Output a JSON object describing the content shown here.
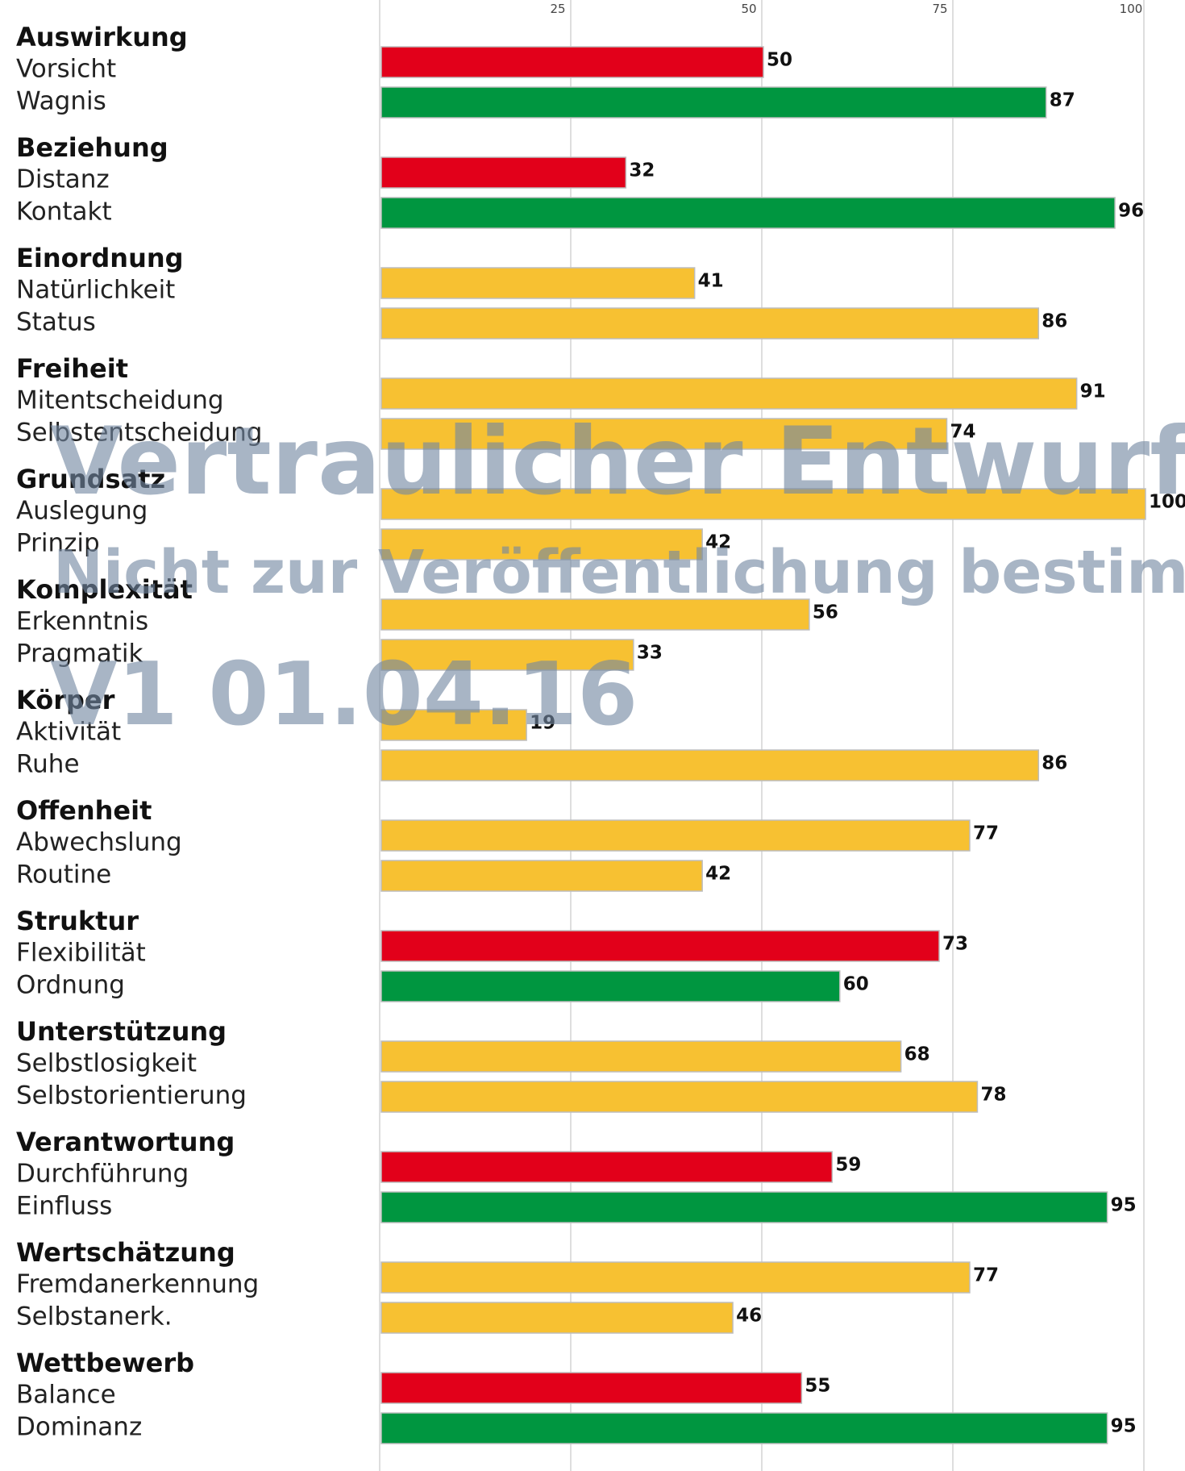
{
  "chart_data": {
    "type": "bar",
    "orientation": "horizontal",
    "xlim": [
      0,
      100
    ],
    "ticks": [
      25,
      50,
      75,
      100
    ],
    "grid": true,
    "colors": {
      "red": "#e2001a",
      "green": "#009640",
      "yellow": "#f7c132"
    },
    "groups": [
      {
        "name": "Auswirkung",
        "items": [
          {
            "label": "Vorsicht",
            "value": 50,
            "color": "red"
          },
          {
            "label": "Wagnis",
            "value": 87,
            "color": "green"
          }
        ]
      },
      {
        "name": "Beziehung",
        "items": [
          {
            "label": "Distanz",
            "value": 32,
            "color": "red"
          },
          {
            "label": "Kontakt",
            "value": 96,
            "color": "green"
          }
        ]
      },
      {
        "name": "Einordnung",
        "items": [
          {
            "label": "Natürlichkeit",
            "value": 41,
            "color": "yellow"
          },
          {
            "label": "Status",
            "value": 86,
            "color": "yellow"
          }
        ]
      },
      {
        "name": "Freiheit",
        "items": [
          {
            "label": "Mitentscheidung",
            "value": 91,
            "color": "yellow"
          },
          {
            "label": "Selbstentscheidung",
            "value": 74,
            "color": "yellow"
          }
        ]
      },
      {
        "name": "Grundsatz",
        "items": [
          {
            "label": "Auslegung",
            "value": 100,
            "color": "yellow"
          },
          {
            "label": "Prinzip",
            "value": 42,
            "color": "yellow"
          }
        ]
      },
      {
        "name": "Komplexität",
        "items": [
          {
            "label": "Erkenntnis",
            "value": 56,
            "color": "yellow"
          },
          {
            "label": "Pragmatik",
            "value": 33,
            "color": "yellow"
          }
        ]
      },
      {
        "name": "Körper",
        "items": [
          {
            "label": "Aktivität",
            "value": 19,
            "color": "yellow"
          },
          {
            "label": "Ruhe",
            "value": 86,
            "color": "yellow"
          }
        ]
      },
      {
        "name": "Offenheit",
        "items": [
          {
            "label": "Abwechslung",
            "value": 77,
            "color": "yellow"
          },
          {
            "label": "Routine",
            "value": 42,
            "color": "yellow"
          }
        ]
      },
      {
        "name": "Struktur",
        "items": [
          {
            "label": "Flexibilität",
            "value": 73,
            "color": "red"
          },
          {
            "label": "Ordnung",
            "value": 60,
            "color": "green"
          }
        ]
      },
      {
        "name": "Unterstützung",
        "items": [
          {
            "label": "Selbstlosigkeit",
            "value": 68,
            "color": "yellow"
          },
          {
            "label": "Selbstorientierung",
            "value": 78,
            "color": "yellow"
          }
        ]
      },
      {
        "name": "Verantwortung",
        "items": [
          {
            "label": "Durchführung",
            "value": 59,
            "color": "red"
          },
          {
            "label": "Einfluss",
            "value": 95,
            "color": "green"
          }
        ]
      },
      {
        "name": "Wertschätzung",
        "items": [
          {
            "label": "Fremdanerkennung",
            "value": 77,
            "color": "yellow"
          },
          {
            "label": "Selbstanerk.",
            "value": 46,
            "color": "yellow"
          }
        ]
      },
      {
        "name": "Wettbewerb",
        "items": [
          {
            "label": "Balance",
            "value": 55,
            "color": "red"
          },
          {
            "label": "Dominanz",
            "value": 95,
            "color": "green"
          }
        ]
      }
    ]
  },
  "watermark": {
    "line1": "Vertraulicher Entwurf",
    "line2": "Nicht zur Veröffentlichung bestimmt",
    "line3": "V1 01.04.16"
  }
}
